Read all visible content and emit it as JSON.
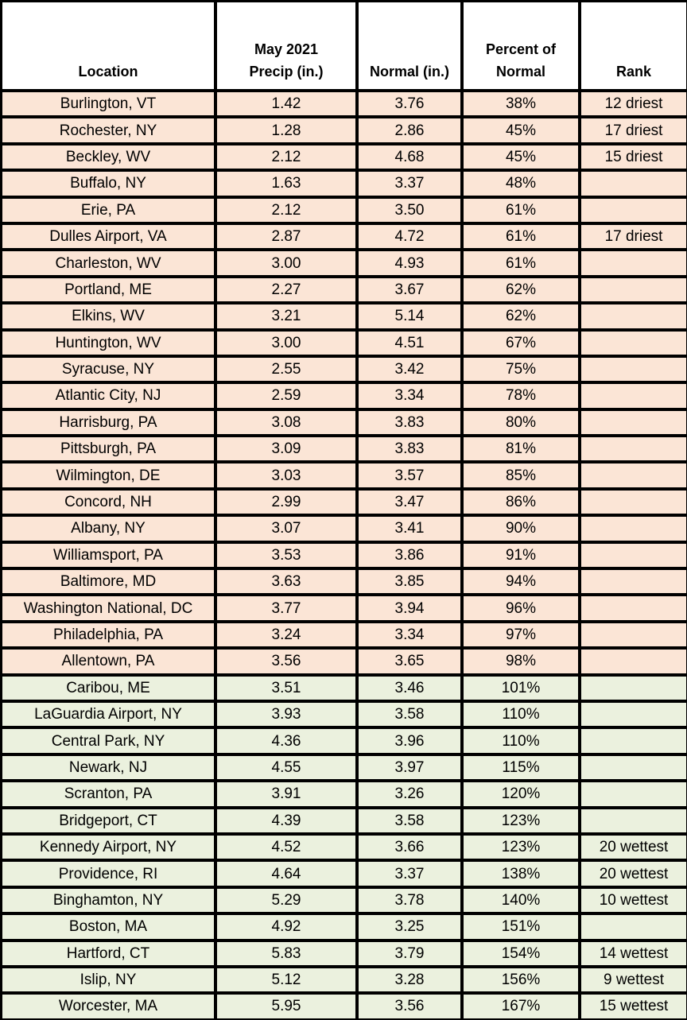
{
  "header": {
    "location": "Location",
    "precip_l1": "May 2021",
    "precip_l2": "Precip (in.)",
    "normal": "Normal (in.)",
    "percent_l1": "Percent of",
    "percent_l2": "Normal",
    "rank": "Rank"
  },
  "colors": {
    "below_normal_row_bg": "#fbe5d6",
    "above_normal_row_bg": "#ebf1de",
    "header_bg": "#ffffff",
    "grid": "#000000",
    "text": "#000000"
  },
  "chart_data": {
    "type": "table",
    "columns": [
      "Location",
      "May 2021 Precip (in.)",
      "Normal (in.)",
      "Percent of Normal",
      "Rank"
    ],
    "rows": [
      {
        "location": "Burlington, VT",
        "precip": "1.42",
        "normal": "3.76",
        "percent": "38%",
        "rank": "12 driest",
        "status": "below-normal"
      },
      {
        "location": "Rochester, NY",
        "precip": "1.28",
        "normal": "2.86",
        "percent": "45%",
        "rank": "17 driest",
        "status": "below-normal"
      },
      {
        "location": "Beckley, WV",
        "precip": "2.12",
        "normal": "4.68",
        "percent": "45%",
        "rank": "15 driest",
        "status": "below-normal"
      },
      {
        "location": "Buffalo, NY",
        "precip": "1.63",
        "normal": "3.37",
        "percent": "48%",
        "rank": "",
        "status": "below-normal"
      },
      {
        "location": "Erie, PA",
        "precip": "2.12",
        "normal": "3.50",
        "percent": "61%",
        "rank": "",
        "status": "below-normal"
      },
      {
        "location": "Dulles Airport, VA",
        "precip": "2.87",
        "normal": "4.72",
        "percent": "61%",
        "rank": "17 driest",
        "status": "below-normal"
      },
      {
        "location": "Charleston, WV",
        "precip": "3.00",
        "normal": "4.93",
        "percent": "61%",
        "rank": "",
        "status": "below-normal"
      },
      {
        "location": "Portland, ME",
        "precip": "2.27",
        "normal": "3.67",
        "percent": "62%",
        "rank": "",
        "status": "below-normal"
      },
      {
        "location": "Elkins, WV",
        "precip": "3.21",
        "normal": "5.14",
        "percent": "62%",
        "rank": "",
        "status": "below-normal"
      },
      {
        "location": "Huntington, WV",
        "precip": "3.00",
        "normal": "4.51",
        "percent": "67%",
        "rank": "",
        "status": "below-normal"
      },
      {
        "location": "Syracuse, NY",
        "precip": "2.55",
        "normal": "3.42",
        "percent": "75%",
        "rank": "",
        "status": "below-normal"
      },
      {
        "location": "Atlantic City, NJ",
        "precip": "2.59",
        "normal": "3.34",
        "percent": "78%",
        "rank": "",
        "status": "below-normal"
      },
      {
        "location": "Harrisburg, PA",
        "precip": "3.08",
        "normal": "3.83",
        "percent": "80%",
        "rank": "",
        "status": "below-normal"
      },
      {
        "location": "Pittsburgh, PA",
        "precip": "3.09",
        "normal": "3.83",
        "percent": "81%",
        "rank": "",
        "status": "below-normal"
      },
      {
        "location": "Wilmington, DE",
        "precip": "3.03",
        "normal": "3.57",
        "percent": "85%",
        "rank": "",
        "status": "below-normal"
      },
      {
        "location": "Concord, NH",
        "precip": "2.99",
        "normal": "3.47",
        "percent": "86%",
        "rank": "",
        "status": "below-normal"
      },
      {
        "location": "Albany, NY",
        "precip": "3.07",
        "normal": "3.41",
        "percent": "90%",
        "rank": "",
        "status": "below-normal"
      },
      {
        "location": "Williamsport, PA",
        "precip": "3.53",
        "normal": "3.86",
        "percent": "91%",
        "rank": "",
        "status": "below-normal"
      },
      {
        "location": "Baltimore, MD",
        "precip": "3.63",
        "normal": "3.85",
        "percent": "94%",
        "rank": "",
        "status": "below-normal"
      },
      {
        "location": "Washington National, DC",
        "precip": "3.77",
        "normal": "3.94",
        "percent": "96%",
        "rank": "",
        "status": "below-normal"
      },
      {
        "location": "Philadelphia, PA",
        "precip": "3.24",
        "normal": "3.34",
        "percent": "97%",
        "rank": "",
        "status": "below-normal"
      },
      {
        "location": "Allentown, PA",
        "precip": "3.56",
        "normal": "3.65",
        "percent": "98%",
        "rank": "",
        "status": "below-normal"
      },
      {
        "location": "Caribou, ME",
        "precip": "3.51",
        "normal": "3.46",
        "percent": "101%",
        "rank": "",
        "status": "above-normal"
      },
      {
        "location": "LaGuardia Airport, NY",
        "precip": "3.93",
        "normal": "3.58",
        "percent": "110%",
        "rank": "",
        "status": "above-normal"
      },
      {
        "location": "Central Park, NY",
        "precip": "4.36",
        "normal": "3.96",
        "percent": "110%",
        "rank": "",
        "status": "above-normal"
      },
      {
        "location": "Newark, NJ",
        "precip": "4.55",
        "normal": "3.97",
        "percent": "115%",
        "rank": "",
        "status": "above-normal"
      },
      {
        "location": "Scranton, PA",
        "precip": "3.91",
        "normal": "3.26",
        "percent": "120%",
        "rank": "",
        "status": "above-normal"
      },
      {
        "location": "Bridgeport, CT",
        "precip": "4.39",
        "normal": "3.58",
        "percent": "123%",
        "rank": "",
        "status": "above-normal"
      },
      {
        "location": "Kennedy Airport, NY",
        "precip": "4.52",
        "normal": "3.66",
        "percent": "123%",
        "rank": "20 wettest",
        "status": "above-normal"
      },
      {
        "location": "Providence, RI",
        "precip": "4.64",
        "normal": "3.37",
        "percent": "138%",
        "rank": "20 wettest",
        "status": "above-normal"
      },
      {
        "location": "Binghamton, NY",
        "precip": "5.29",
        "normal": "3.78",
        "percent": "140%",
        "rank": "10 wettest",
        "status": "above-normal"
      },
      {
        "location": "Boston, MA",
        "precip": "4.92",
        "normal": "3.25",
        "percent": "151%",
        "rank": "",
        "status": "above-normal"
      },
      {
        "location": "Hartford, CT",
        "precip": "5.83",
        "normal": "3.79",
        "percent": "154%",
        "rank": "14 wettest",
        "status": "above-normal"
      },
      {
        "location": "Islip, NY",
        "precip": "5.12",
        "normal": "3.28",
        "percent": "156%",
        "rank": "9 wettest",
        "status": "above-normal"
      },
      {
        "location": "Worcester, MA",
        "precip": "5.95",
        "normal": "3.56",
        "percent": "167%",
        "rank": "15 wettest",
        "status": "above-normal"
      }
    ]
  }
}
